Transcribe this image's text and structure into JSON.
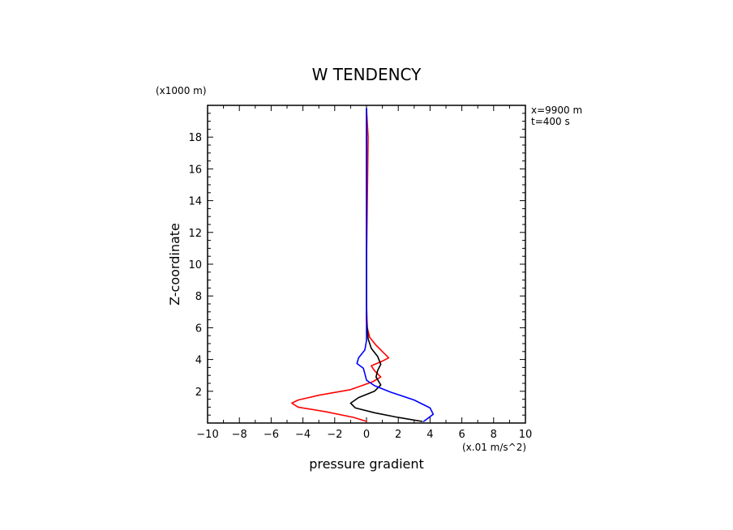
{
  "chart_data": {
    "type": "line",
    "title": "W TENDENCY",
    "xlabel": "pressure gradient",
    "ylabel": "Z-coordinate",
    "x_unit_label": "(x.01 m/s^2)",
    "y_unit_label": "(x1000 m)",
    "annotations": [
      "x=9900 m",
      "t=400 s"
    ],
    "xlim": [
      -10,
      10
    ],
    "ylim": [
      0,
      20
    ],
    "x_ticks": [
      -10,
      -8,
      -6,
      -4,
      -2,
      0,
      2,
      4,
      6,
      8,
      10
    ],
    "x_tick_labels": [
      "−10",
      "−8",
      "−6",
      "−4",
      "−2",
      "0",
      "2",
      "4",
      "6",
      "8",
      "10"
    ],
    "y_ticks": [
      2,
      4,
      6,
      8,
      10,
      12,
      14,
      16,
      18
    ],
    "y_tick_labels": [
      "2",
      "4",
      "6",
      "8",
      "10",
      "12",
      "14",
      "16",
      "18"
    ],
    "grid": false,
    "series": [
      {
        "color": "#ff0000",
        "points": [
          [
            0.0,
            0.1
          ],
          [
            -0.8,
            0.35
          ],
          [
            -2.5,
            0.7
          ],
          [
            -4.3,
            1.0
          ],
          [
            -4.7,
            1.25
          ],
          [
            -4.3,
            1.45
          ],
          [
            -3.0,
            1.75
          ],
          [
            -1.0,
            2.1
          ],
          [
            0.4,
            2.6
          ],
          [
            0.9,
            2.9
          ],
          [
            0.5,
            3.3
          ],
          [
            0.3,
            3.6
          ],
          [
            1.0,
            3.9
          ],
          [
            1.4,
            4.1
          ],
          [
            1.0,
            4.5
          ],
          [
            0.6,
            4.9
          ],
          [
            0.2,
            5.4
          ],
          [
            0.05,
            6.0
          ],
          [
            0.0,
            7.5
          ],
          [
            0.0,
            10
          ],
          [
            0.05,
            14
          ],
          [
            0.1,
            18
          ],
          [
            0.0,
            19.8
          ]
        ]
      },
      {
        "color": "#000000",
        "points": [
          [
            3.5,
            0.1
          ],
          [
            2.0,
            0.35
          ],
          [
            0.5,
            0.65
          ],
          [
            -0.7,
            0.95
          ],
          [
            -1.0,
            1.25
          ],
          [
            -0.5,
            1.6
          ],
          [
            0.5,
            2.0
          ],
          [
            0.9,
            2.4
          ],
          [
            0.6,
            2.9
          ],
          [
            0.7,
            3.3
          ],
          [
            0.9,
            3.7
          ],
          [
            0.7,
            4.2
          ],
          [
            0.3,
            4.7
          ],
          [
            0.1,
            5.3
          ],
          [
            0.0,
            6.5
          ],
          [
            0.0,
            10
          ],
          [
            0.0,
            15
          ],
          [
            0.0,
            19.8
          ]
        ]
      },
      {
        "color": "#0000ff",
        "points": [
          [
            3.6,
            0.1
          ],
          [
            4.2,
            0.55
          ],
          [
            4.0,
            0.95
          ],
          [
            3.0,
            1.45
          ],
          [
            1.5,
            1.95
          ],
          [
            0.5,
            2.35
          ],
          [
            0.0,
            2.7
          ],
          [
            -0.1,
            3.1
          ],
          [
            -0.2,
            3.45
          ],
          [
            -0.6,
            3.75
          ],
          [
            -0.5,
            4.1
          ],
          [
            -0.1,
            4.6
          ],
          [
            0.0,
            5.2
          ],
          [
            0.0,
            6.0
          ],
          [
            0.0,
            10
          ],
          [
            0.0,
            15
          ],
          [
            0.0,
            19.8
          ]
        ]
      }
    ]
  }
}
